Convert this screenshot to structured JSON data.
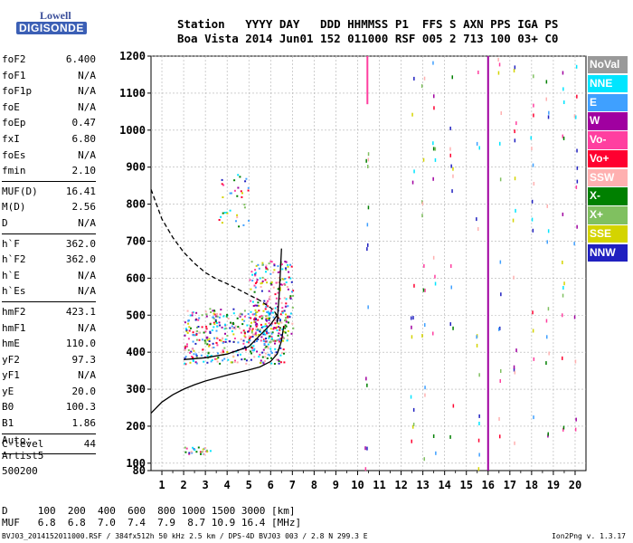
{
  "logo": {
    "top": "Lowell",
    "bottom": "DIGISONDE"
  },
  "header": {
    "line1": "Station   YYYY DAY   DDD HHMMSS P1  FFS S AXN PPS IGA PS",
    "line2": "Boa Vista 2014 Jun01 152 011000 RSF 005 2 713 100 03+ C0"
  },
  "params": {
    "group1": [
      {
        "label": "foF2",
        "value": "6.400"
      },
      {
        "label": "foF1",
        "value": "N/A"
      },
      {
        "label": "foF1p",
        "value": "N/A"
      },
      {
        "label": "foE",
        "value": "N/A"
      },
      {
        "label": "foEp",
        "value": "0.47"
      },
      {
        "label": "fxI",
        "value": "6.80"
      },
      {
        "label": "foEs",
        "value": "N/A"
      },
      {
        "label": "fmin",
        "value": "2.10"
      }
    ],
    "group2": [
      {
        "label": "MUF(D)",
        "value": "16.41"
      },
      {
        "label": "M(D)",
        "value": "2.56"
      },
      {
        "label": "D",
        "value": "N/A"
      }
    ],
    "group3": [
      {
        "label": "h`F",
        "value": "362.0"
      },
      {
        "label": "h`F2",
        "value": "362.0"
      },
      {
        "label": "h`E",
        "value": "N/A"
      },
      {
        "label": "h`Es",
        "value": "N/A"
      }
    ],
    "group4": [
      {
        "label": "hmF2",
        "value": "423.1"
      },
      {
        "label": "hmF1",
        "value": "N/A"
      },
      {
        "label": "hmE",
        "value": "110.0"
      },
      {
        "label": "yF2",
        "value": "97.3"
      },
      {
        "label": "yF1",
        "value": "N/A"
      },
      {
        "label": "yE",
        "value": "20.0"
      },
      {
        "label": "B0",
        "value": "100.3"
      },
      {
        "label": "B1",
        "value": "1.86"
      }
    ],
    "group5": [
      {
        "label": "C-level",
        "value": "44"
      }
    ]
  },
  "auto": {
    "line1": "Auto:",
    "line2": "Artist5",
    "line3": "500200"
  },
  "legend": [
    {
      "label": "NoVal",
      "color": "#999999"
    },
    {
      "label": "NNE",
      "color": "#00e5ff"
    },
    {
      "label": "E",
      "color": "#3fa0ff"
    },
    {
      "label": "W",
      "color": "#a000a0"
    },
    {
      "label": "Vo-",
      "color": "#ff3fa0"
    },
    {
      "label": "Vo+",
      "color": "#ff0030"
    },
    {
      "label": "SSW",
      "color": "#ffb0b0"
    },
    {
      "label": "X-",
      "color": "#008000"
    },
    {
      "label": "X+",
      "color": "#80c060"
    },
    {
      "label": "SSE",
      "color": "#d4d400"
    },
    {
      "label": "NNW",
      "color": "#2020c0"
    }
  ],
  "dtable": {
    "line1": "D     100  200  400  600  800 1000 1500 3000 [km]",
    "line2": "MUF   6.8  6.8  7.0  7.4  7.9  8.7 10.9 16.4 [MHz]"
  },
  "footer": {
    "text": "BVJ03_2014152011000.RSF / 384fx512h 50 kHz 2.5 km / DPS-4D BVJ03 003 / 2.8 N 299.3 E",
    "version": "Ion2Png v. 1.3.17"
  },
  "chart_data": {
    "type": "scatter",
    "xlim": [
      0.5,
      20.5
    ],
    "ylim": [
      80,
      1200
    ],
    "x_ticks": [
      1,
      2,
      3,
      4,
      5,
      6,
      7,
      8,
      9,
      10,
      11,
      12,
      13,
      14,
      15,
      16,
      17,
      18,
      19,
      20
    ],
    "y_ticks": [
      80,
      100,
      200,
      300,
      400,
      500,
      600,
      700,
      800,
      900,
      1000,
      1100,
      1200
    ],
    "grid": true,
    "series": [
      {
        "kind": "line-dashed",
        "points": [
          [
            0.5,
            840
          ],
          [
            1,
            760
          ],
          [
            1.5,
            710
          ],
          [
            2,
            670
          ],
          [
            2.5,
            640
          ],
          [
            3,
            615
          ],
          [
            3.5,
            598
          ],
          [
            4,
            585
          ],
          [
            4.5,
            570
          ],
          [
            5,
            555
          ],
          [
            5.5,
            540
          ],
          [
            6,
            520
          ],
          [
            6.2,
            508
          ],
          [
            6.4,
            490
          ]
        ]
      },
      {
        "kind": "line-solid",
        "points": [
          [
            0.5,
            235
          ],
          [
            1,
            265
          ],
          [
            1.5,
            285
          ],
          [
            2,
            300
          ],
          [
            2.5,
            312
          ],
          [
            3,
            322
          ],
          [
            3.5,
            330
          ],
          [
            4,
            338
          ],
          [
            4.5,
            345
          ],
          [
            5,
            352
          ],
          [
            5.5,
            360
          ],
          [
            6,
            375
          ],
          [
            6.3,
            395
          ],
          [
            6.5,
            430
          ],
          [
            6.6,
            470
          ]
        ]
      },
      {
        "kind": "line-solid",
        "points": [
          [
            6.3,
            480
          ],
          [
            6.4,
            560
          ],
          [
            6.45,
            620
          ],
          [
            6.5,
            680
          ]
        ]
      },
      {
        "kind": "line-solid",
        "points": [
          [
            2,
            380
          ],
          [
            3,
            385
          ],
          [
            4,
            395
          ],
          [
            5,
            415
          ],
          [
            5.5,
            445
          ],
          [
            6,
            475
          ],
          [
            6.3,
            500
          ]
        ]
      },
      {
        "kind": "vertical-line",
        "x": 16.0,
        "ymin": 80,
        "ymax": 1200,
        "color": "#a000a0"
      },
      {
        "kind": "vertical-line",
        "x": 10.45,
        "ymin": 1070,
        "ymax": 1200,
        "color": "#ff3fa0"
      }
    ],
    "clusters": [
      {
        "xrange": [
          2.0,
          6.7
        ],
        "yrange": [
          370,
          520
        ],
        "count": 420
      },
      {
        "xrange": [
          5.0,
          7.0
        ],
        "yrange": [
          430,
          650
        ],
        "count": 220
      },
      {
        "xrange": [
          3.6,
          5.1
        ],
        "yrange": [
          740,
          890
        ],
        "count": 35
      },
      {
        "xrange": [
          2.0,
          3.2
        ],
        "yrange": [
          125,
          145
        ],
        "count": 25
      }
    ]
  }
}
